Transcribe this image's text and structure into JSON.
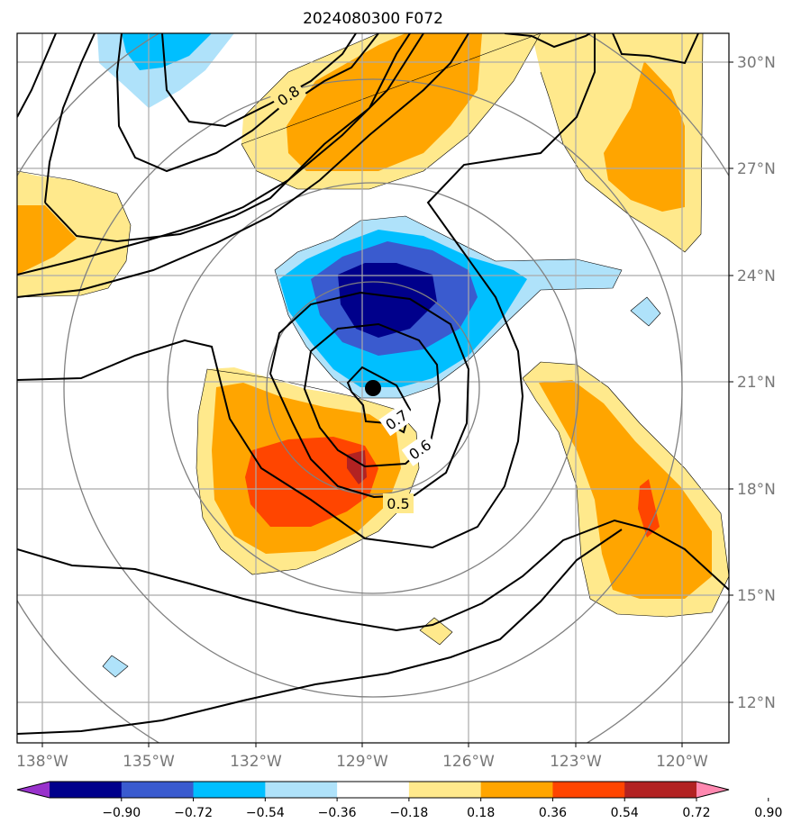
{
  "chart_data": {
    "type": "contour_map",
    "title": "2024080300 F072",
    "x_ticks": [
      "138°W",
      "135°W",
      "132°W",
      "129°W",
      "126°W",
      "123°W",
      "120°W"
    ],
    "y_ticks": [
      "30°N",
      "27°N",
      "24°N",
      "21°N",
      "18°N",
      "15°N",
      "12°N"
    ],
    "colorbar": {
      "ticks": [
        "−0.90",
        "−0.72",
        "−0.54",
        "−0.36",
        "−0.18",
        "0.18",
        "0.36",
        "0.54",
        "0.72",
        "0.90"
      ],
      "colors": [
        "#9932cc",
        "#00008b",
        "#3a5bcf",
        "#00bfff",
        "#afe2fa",
        "#ffffff",
        "#ffe98c",
        "#ffa500",
        "#ff4500",
        "#b22222",
        "#ff88b0"
      ]
    },
    "contour_labels": [
      "0.8",
      "0.7",
      "0.6",
      "0.5"
    ],
    "storm_center": {
      "lon": -129.3,
      "lat": 20.8
    },
    "colors": {
      "grid": "#aaaaaa",
      "circles": "#808080",
      "contour": "#000000"
    }
  }
}
